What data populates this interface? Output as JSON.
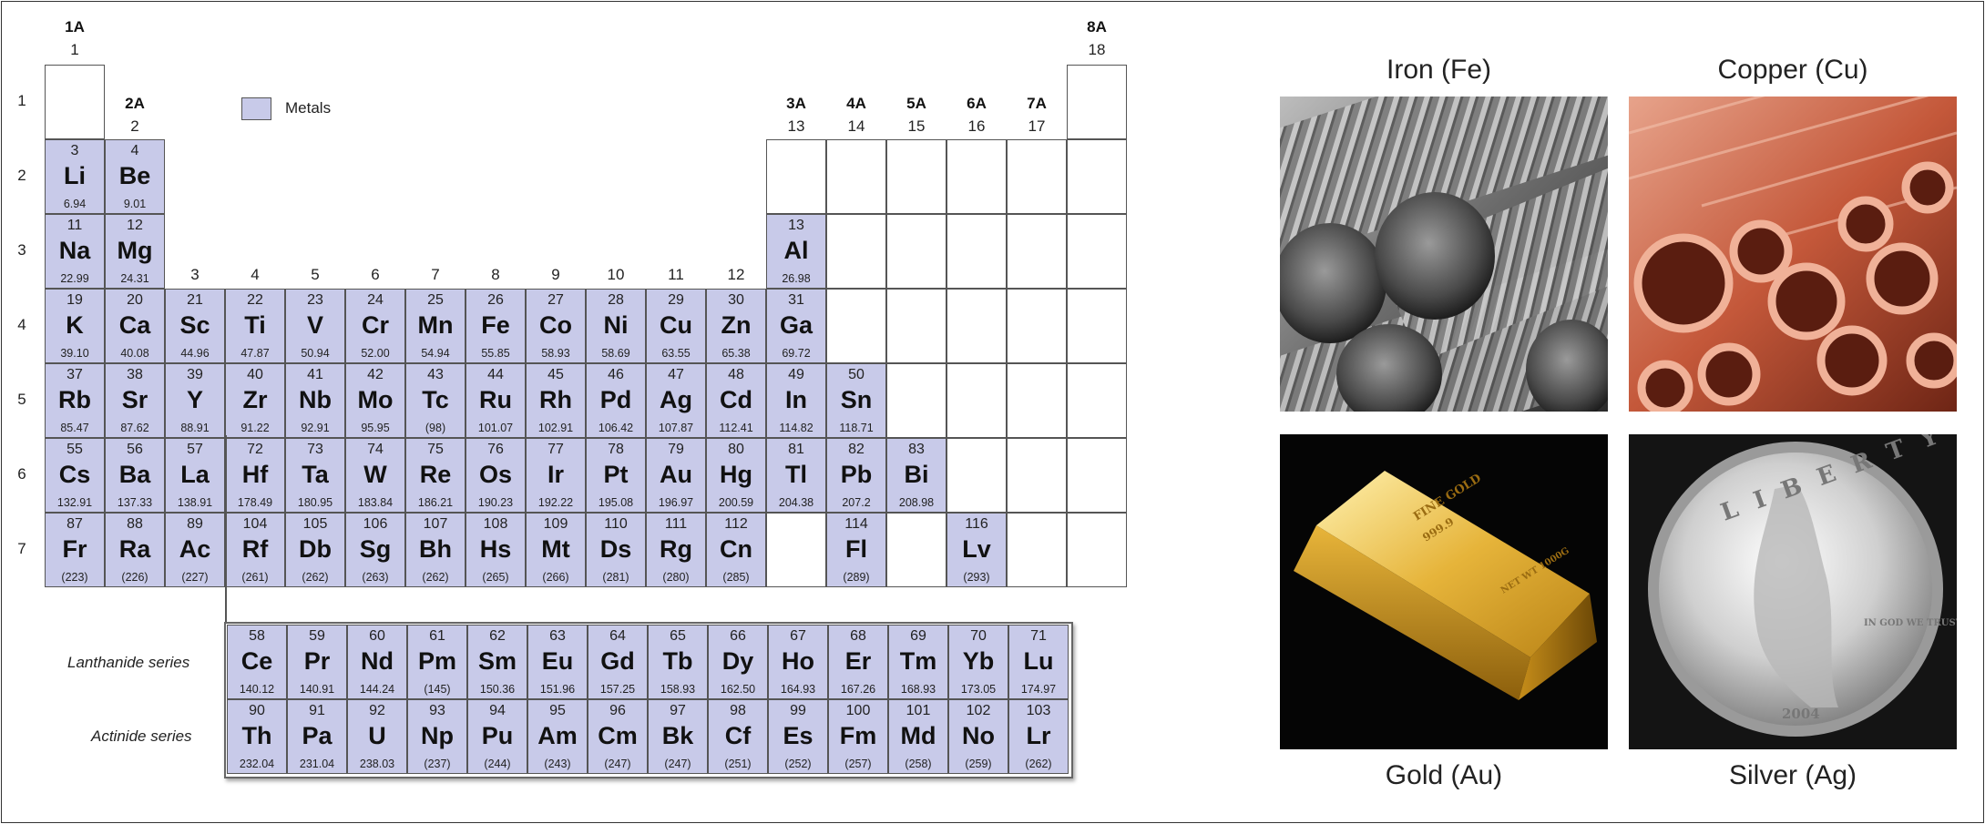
{
  "table": {
    "group_labels": [
      {
        "a": "1A",
        "n": "1"
      },
      {
        "a": "2A",
        "n": "2"
      },
      {
        "a": "",
        "n": "3"
      },
      {
        "a": "",
        "n": "4"
      },
      {
        "a": "",
        "n": "5"
      },
      {
        "a": "",
        "n": "6"
      },
      {
        "a": "",
        "n": "7"
      },
      {
        "a": "",
        "n": "8"
      },
      {
        "a": "",
        "n": "9"
      },
      {
        "a": "",
        "n": "10"
      },
      {
        "a": "",
        "n": "11"
      },
      {
        "a": "",
        "n": "12"
      },
      {
        "a": "3A",
        "n": "13"
      },
      {
        "a": "4A",
        "n": "14"
      },
      {
        "a": "5A",
        "n": "15"
      },
      {
        "a": "6A",
        "n": "16"
      },
      {
        "a": "7A",
        "n": "17"
      },
      {
        "a": "8A",
        "n": "18"
      }
    ],
    "periods": [
      "1",
      "2",
      "3",
      "4",
      "5",
      "6",
      "7"
    ],
    "legend": {
      "label": "Metals",
      "color": "#c8cae9"
    },
    "elements": [
      {
        "p": 1,
        "g": 1,
        "z": "",
        "s": "",
        "m": "",
        "metal": false
      },
      {
        "p": 1,
        "g": 18,
        "z": "",
        "s": "",
        "m": "",
        "metal": false
      },
      {
        "p": 2,
        "g": 1,
        "z": "3",
        "s": "Li",
        "m": "6.94",
        "metal": true
      },
      {
        "p": 2,
        "g": 2,
        "z": "4",
        "s": "Be",
        "m": "9.01",
        "metal": true
      },
      {
        "p": 2,
        "g": 13,
        "z": "",
        "s": "",
        "m": "",
        "metal": false
      },
      {
        "p": 2,
        "g": 14,
        "z": "",
        "s": "",
        "m": "",
        "metal": false
      },
      {
        "p": 2,
        "g": 15,
        "z": "",
        "s": "",
        "m": "",
        "metal": false
      },
      {
        "p": 2,
        "g": 16,
        "z": "",
        "s": "",
        "m": "",
        "metal": false
      },
      {
        "p": 2,
        "g": 17,
        "z": "",
        "s": "",
        "m": "",
        "metal": false
      },
      {
        "p": 2,
        "g": 18,
        "z": "",
        "s": "",
        "m": "",
        "metal": false
      },
      {
        "p": 3,
        "g": 1,
        "z": "11",
        "s": "Na",
        "m": "22.99",
        "metal": true
      },
      {
        "p": 3,
        "g": 2,
        "z": "12",
        "s": "Mg",
        "m": "24.31",
        "metal": true
      },
      {
        "p": 3,
        "g": 13,
        "z": "13",
        "s": "Al",
        "m": "26.98",
        "metal": true
      },
      {
        "p": 3,
        "g": 14,
        "z": "",
        "s": "",
        "m": "",
        "metal": false
      },
      {
        "p": 3,
        "g": 15,
        "z": "",
        "s": "",
        "m": "",
        "metal": false
      },
      {
        "p": 3,
        "g": 16,
        "z": "",
        "s": "",
        "m": "",
        "metal": false
      },
      {
        "p": 3,
        "g": 17,
        "z": "",
        "s": "",
        "m": "",
        "metal": false
      },
      {
        "p": 3,
        "g": 18,
        "z": "",
        "s": "",
        "m": "",
        "metal": false
      },
      {
        "p": 4,
        "g": 1,
        "z": "19",
        "s": "K",
        "m": "39.10",
        "metal": true
      },
      {
        "p": 4,
        "g": 2,
        "z": "20",
        "s": "Ca",
        "m": "40.08",
        "metal": true
      },
      {
        "p": 4,
        "g": 3,
        "z": "21",
        "s": "Sc",
        "m": "44.96",
        "metal": true
      },
      {
        "p": 4,
        "g": 4,
        "z": "22",
        "s": "Ti",
        "m": "47.87",
        "metal": true
      },
      {
        "p": 4,
        "g": 5,
        "z": "23",
        "s": "V",
        "m": "50.94",
        "metal": true
      },
      {
        "p": 4,
        "g": 6,
        "z": "24",
        "s": "Cr",
        "m": "52.00",
        "metal": true
      },
      {
        "p": 4,
        "g": 7,
        "z": "25",
        "s": "Mn",
        "m": "54.94",
        "metal": true
      },
      {
        "p": 4,
        "g": 8,
        "z": "26",
        "s": "Fe",
        "m": "55.85",
        "metal": true
      },
      {
        "p": 4,
        "g": 9,
        "z": "27",
        "s": "Co",
        "m": "58.93",
        "metal": true
      },
      {
        "p": 4,
        "g": 10,
        "z": "28",
        "s": "Ni",
        "m": "58.69",
        "metal": true
      },
      {
        "p": 4,
        "g": 11,
        "z": "29",
        "s": "Cu",
        "m": "63.55",
        "metal": true
      },
      {
        "p": 4,
        "g": 12,
        "z": "30",
        "s": "Zn",
        "m": "65.38",
        "metal": true
      },
      {
        "p": 4,
        "g": 13,
        "z": "31",
        "s": "Ga",
        "m": "69.72",
        "metal": true
      },
      {
        "p": 4,
        "g": 14,
        "z": "",
        "s": "",
        "m": "",
        "metal": false
      },
      {
        "p": 4,
        "g": 15,
        "z": "",
        "s": "",
        "m": "",
        "metal": false
      },
      {
        "p": 4,
        "g": 16,
        "z": "",
        "s": "",
        "m": "",
        "metal": false
      },
      {
        "p": 4,
        "g": 17,
        "z": "",
        "s": "",
        "m": "",
        "metal": false
      },
      {
        "p": 4,
        "g": 18,
        "z": "",
        "s": "",
        "m": "",
        "metal": false
      },
      {
        "p": 5,
        "g": 1,
        "z": "37",
        "s": "Rb",
        "m": "85.47",
        "metal": true
      },
      {
        "p": 5,
        "g": 2,
        "z": "38",
        "s": "Sr",
        "m": "87.62",
        "metal": true
      },
      {
        "p": 5,
        "g": 3,
        "z": "39",
        "s": "Y",
        "m": "88.91",
        "metal": true
      },
      {
        "p": 5,
        "g": 4,
        "z": "40",
        "s": "Zr",
        "m": "91.22",
        "metal": true
      },
      {
        "p": 5,
        "g": 5,
        "z": "41",
        "s": "Nb",
        "m": "92.91",
        "metal": true
      },
      {
        "p": 5,
        "g": 6,
        "z": "42",
        "s": "Mo",
        "m": "95.95",
        "metal": true
      },
      {
        "p": 5,
        "g": 7,
        "z": "43",
        "s": "Tc",
        "m": "(98)",
        "metal": true
      },
      {
        "p": 5,
        "g": 8,
        "z": "44",
        "s": "Ru",
        "m": "101.07",
        "metal": true
      },
      {
        "p": 5,
        "g": 9,
        "z": "45",
        "s": "Rh",
        "m": "102.91",
        "metal": true
      },
      {
        "p": 5,
        "g": 10,
        "z": "46",
        "s": "Pd",
        "m": "106.42",
        "metal": true
      },
      {
        "p": 5,
        "g": 11,
        "z": "47",
        "s": "Ag",
        "m": "107.87",
        "metal": true
      },
      {
        "p": 5,
        "g": 12,
        "z": "48",
        "s": "Cd",
        "m": "112.41",
        "metal": true
      },
      {
        "p": 5,
        "g": 13,
        "z": "49",
        "s": "In",
        "m": "114.82",
        "metal": true
      },
      {
        "p": 5,
        "g": 14,
        "z": "50",
        "s": "Sn",
        "m": "118.71",
        "metal": true
      },
      {
        "p": 5,
        "g": 15,
        "z": "",
        "s": "",
        "m": "",
        "metal": false
      },
      {
        "p": 5,
        "g": 16,
        "z": "",
        "s": "",
        "m": "",
        "metal": false
      },
      {
        "p": 5,
        "g": 17,
        "z": "",
        "s": "",
        "m": "",
        "metal": false
      },
      {
        "p": 5,
        "g": 18,
        "z": "",
        "s": "",
        "m": "",
        "metal": false
      },
      {
        "p": 6,
        "g": 1,
        "z": "55",
        "s": "Cs",
        "m": "132.91",
        "metal": true
      },
      {
        "p": 6,
        "g": 2,
        "z": "56",
        "s": "Ba",
        "m": "137.33",
        "metal": true
      },
      {
        "p": 6,
        "g": 3,
        "z": "57",
        "s": "La",
        "m": "138.91",
        "metal": true
      },
      {
        "p": 6,
        "g": 4,
        "z": "72",
        "s": "Hf",
        "m": "178.49",
        "metal": true
      },
      {
        "p": 6,
        "g": 5,
        "z": "73",
        "s": "Ta",
        "m": "180.95",
        "metal": true
      },
      {
        "p": 6,
        "g": 6,
        "z": "74",
        "s": "W",
        "m": "183.84",
        "metal": true
      },
      {
        "p": 6,
        "g": 7,
        "z": "75",
        "s": "Re",
        "m": "186.21",
        "metal": true
      },
      {
        "p": 6,
        "g": 8,
        "z": "76",
        "s": "Os",
        "m": "190.23",
        "metal": true
      },
      {
        "p": 6,
        "g": 9,
        "z": "77",
        "s": "Ir",
        "m": "192.22",
        "metal": true
      },
      {
        "p": 6,
        "g": 10,
        "z": "78",
        "s": "Pt",
        "m": "195.08",
        "metal": true
      },
      {
        "p": 6,
        "g": 11,
        "z": "79",
        "s": "Au",
        "m": "196.97",
        "metal": true
      },
      {
        "p": 6,
        "g": 12,
        "z": "80",
        "s": "Hg",
        "m": "200.59",
        "metal": true
      },
      {
        "p": 6,
        "g": 13,
        "z": "81",
        "s": "Tl",
        "m": "204.38",
        "metal": true
      },
      {
        "p": 6,
        "g": 14,
        "z": "82",
        "s": "Pb",
        "m": "207.2",
        "metal": true
      },
      {
        "p": 6,
        "g": 15,
        "z": "83",
        "s": "Bi",
        "m": "208.98",
        "metal": true
      },
      {
        "p": 6,
        "g": 16,
        "z": "",
        "s": "",
        "m": "",
        "metal": false
      },
      {
        "p": 6,
        "g": 17,
        "z": "",
        "s": "",
        "m": "",
        "metal": false
      },
      {
        "p": 6,
        "g": 18,
        "z": "",
        "s": "",
        "m": "",
        "metal": false
      },
      {
        "p": 7,
        "g": 1,
        "z": "87",
        "s": "Fr",
        "m": "(223)",
        "metal": true
      },
      {
        "p": 7,
        "g": 2,
        "z": "88",
        "s": "Ra",
        "m": "(226)",
        "metal": true
      },
      {
        "p": 7,
        "g": 3,
        "z": "89",
        "s": "Ac",
        "m": "(227)",
        "metal": true
      },
      {
        "p": 7,
        "g": 4,
        "z": "104",
        "s": "Rf",
        "m": "(261)",
        "metal": true
      },
      {
        "p": 7,
        "g": 5,
        "z": "105",
        "s": "Db",
        "m": "(262)",
        "metal": true
      },
      {
        "p": 7,
        "g": 6,
        "z": "106",
        "s": "Sg",
        "m": "(263)",
        "metal": true
      },
      {
        "p": 7,
        "g": 7,
        "z": "107",
        "s": "Bh",
        "m": "(262)",
        "metal": true
      },
      {
        "p": 7,
        "g": 8,
        "z": "108",
        "s": "Hs",
        "m": "(265)",
        "metal": true
      },
      {
        "p": 7,
        "g": 9,
        "z": "109",
        "s": "Mt",
        "m": "(266)",
        "metal": true
      },
      {
        "p": 7,
        "g": 10,
        "z": "110",
        "s": "Ds",
        "m": "(281)",
        "metal": true
      },
      {
        "p": 7,
        "g": 11,
        "z": "111",
        "s": "Rg",
        "m": "(280)",
        "metal": true
      },
      {
        "p": 7,
        "g": 12,
        "z": "112",
        "s": "Cn",
        "m": "(285)",
        "metal": true
      },
      {
        "p": 7,
        "g": 13,
        "z": "",
        "s": "",
        "m": "",
        "metal": false
      },
      {
        "p": 7,
        "g": 14,
        "z": "114",
        "s": "Fl",
        "m": "(289)",
        "metal": true
      },
      {
        "p": 7,
        "g": 15,
        "z": "",
        "s": "",
        "m": "",
        "metal": false
      },
      {
        "p": 7,
        "g": 16,
        "z": "116",
        "s": "Lv",
        "m": "(293)",
        "metal": true
      },
      {
        "p": 7,
        "g": 17,
        "z": "",
        "s": "",
        "m": "",
        "metal": false
      },
      {
        "p": 7,
        "g": 18,
        "z": "",
        "s": "",
        "m": "",
        "metal": false
      }
    ],
    "lanthanide_label": "Lanthanide series",
    "actinide_label": "Actinide series",
    "lanthanides": [
      {
        "z": "58",
        "s": "Ce",
        "m": "140.12"
      },
      {
        "z": "59",
        "s": "Pr",
        "m": "140.91"
      },
      {
        "z": "60",
        "s": "Nd",
        "m": "144.24"
      },
      {
        "z": "61",
        "s": "Pm",
        "m": "(145)"
      },
      {
        "z": "62",
        "s": "Sm",
        "m": "150.36"
      },
      {
        "z": "63",
        "s": "Eu",
        "m": "151.96"
      },
      {
        "z": "64",
        "s": "Gd",
        "m": "157.25"
      },
      {
        "z": "65",
        "s": "Tb",
        "m": "158.93"
      },
      {
        "z": "66",
        "s": "Dy",
        "m": "162.50"
      },
      {
        "z": "67",
        "s": "Ho",
        "m": "164.93"
      },
      {
        "z": "68",
        "s": "Er",
        "m": "167.26"
      },
      {
        "z": "69",
        "s": "Tm",
        "m": "168.93"
      },
      {
        "z": "70",
        "s": "Yb",
        "m": "173.05"
      },
      {
        "z": "71",
        "s": "Lu",
        "m": "174.97"
      }
    ],
    "actinides": [
      {
        "z": "90",
        "s": "Th",
        "m": "232.04"
      },
      {
        "z": "91",
        "s": "Pa",
        "m": "231.04"
      },
      {
        "z": "92",
        "s": "U",
        "m": "238.03"
      },
      {
        "z": "93",
        "s": "Np",
        "m": "(237)"
      },
      {
        "z": "94",
        "s": "Pu",
        "m": "(244)"
      },
      {
        "z": "95",
        "s": "Am",
        "m": "(243)"
      },
      {
        "z": "96",
        "s": "Cm",
        "m": "(247)"
      },
      {
        "z": "97",
        "s": "Bk",
        "m": "(247)"
      },
      {
        "z": "98",
        "s": "Cf",
        "m": "(251)"
      },
      {
        "z": "99",
        "s": "Es",
        "m": "(252)"
      },
      {
        "z": "100",
        "s": "Fm",
        "m": "(257)"
      },
      {
        "z": "101",
        "s": "Md",
        "m": "(258)"
      },
      {
        "z": "102",
        "s": "No",
        "m": "(259)"
      },
      {
        "z": "103",
        "s": "Lr",
        "m": "(262)"
      }
    ]
  },
  "photos": {
    "iron": {
      "caption": "Iron (Fe)"
    },
    "copper": {
      "caption": "Copper (Cu)"
    },
    "gold": {
      "caption": "Gold (Au)",
      "bar_text_1": "FINE GOLD",
      "bar_text_2": "999.9",
      "bar_text_3": "NET WT 1000G"
    },
    "silver": {
      "caption": "Silver (Ag)",
      "coin_top": "LIBERTY",
      "coin_motto": "IN GOD WE TRUST",
      "coin_year": "2004"
    }
  }
}
